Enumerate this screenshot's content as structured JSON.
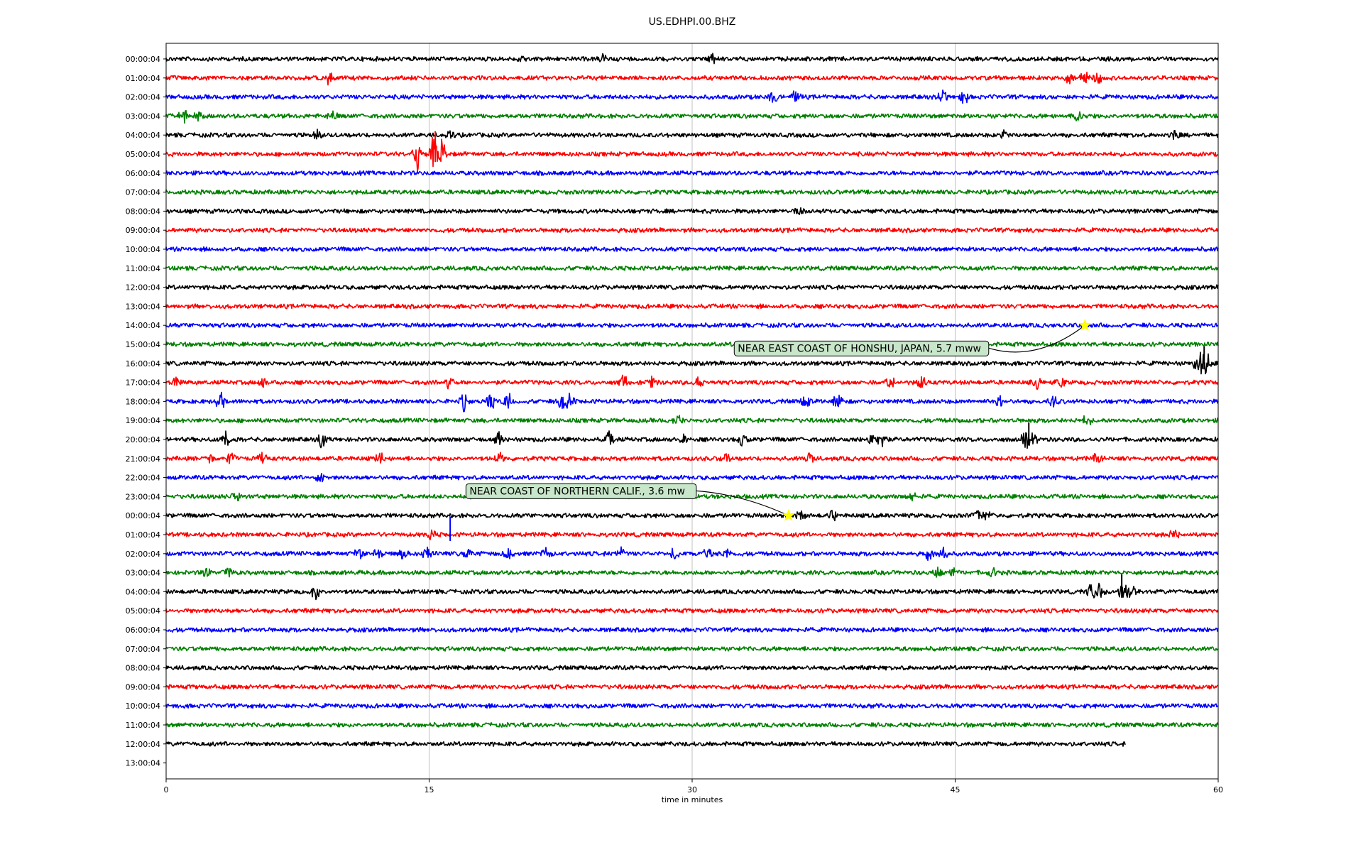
{
  "chart_data": {
    "type": "line",
    "title": "US.EDHPI.00.BHZ",
    "xlabel": "time in minutes",
    "ylabel": "",
    "xlim": [
      0,
      60
    ],
    "x_ticks": [
      0,
      15,
      30,
      45,
      60
    ],
    "x_tick_labels": [
      "0",
      "15",
      "30",
      "45",
      "60"
    ],
    "grid": "vertical lines at x ticks",
    "row_labels": [
      "00:00:04",
      "01:00:04",
      "02:00:04",
      "03:00:04",
      "04:00:04",
      "05:00:04",
      "06:00:04",
      "07:00:04",
      "08:00:04",
      "09:00:04",
      "10:00:04",
      "11:00:04",
      "12:00:04",
      "13:00:04",
      "14:00:04",
      "15:00:04",
      "16:00:04",
      "17:00:04",
      "18:00:04",
      "19:00:04",
      "20:00:04",
      "21:00:04",
      "22:00:04",
      "23:00:04",
      "00:00:04",
      "01:00:04",
      "02:00:04",
      "03:00:04",
      "04:00:04",
      "05:00:04",
      "06:00:04",
      "07:00:04",
      "08:00:04",
      "09:00:04",
      "10:00:04",
      "11:00:04",
      "12:00:04",
      "13:00:04"
    ],
    "trace_colors": [
      "#000000",
      "#ff0000",
      "#0000ff",
      "#008000"
    ],
    "trace_end_minutes": [
      60,
      60,
      60,
      60,
      60,
      60,
      60,
      60,
      60,
      60,
      60,
      60,
      60,
      60,
      60,
      60,
      60,
      60,
      60,
      60,
      60,
      60,
      60,
      60,
      60,
      60,
      60,
      60,
      60,
      60,
      60,
      60,
      60,
      60,
      60,
      60,
      54.7,
      0
    ],
    "events": [
      {
        "row": 0,
        "minutes": [
          20.3,
          24.9,
          31.2
        ],
        "amplitude": 0.25
      },
      {
        "row": 1,
        "minutes": [
          9.3,
          51.5,
          52.4,
          53.1
        ],
        "amplitude": 0.45
      },
      {
        "row": 2,
        "minutes": [
          34.6,
          35.9,
          44.3,
          45.5
        ],
        "amplitude": 0.45
      },
      {
        "row": 3,
        "minutes": [
          1.0,
          1.8,
          9.5,
          52.0
        ],
        "amplitude": 0.4
      },
      {
        "row": 4,
        "minutes": [
          8.6,
          16.2,
          47.8,
          57.5
        ],
        "amplitude": 0.3
      },
      {
        "row": 5,
        "minutes": [
          14.3,
          15.2,
          15.7
        ],
        "amplitude": 1.1
      },
      {
        "row": 8,
        "minutes": [
          36.1
        ],
        "amplitude": 0.2
      },
      {
        "row": 16,
        "minutes": [
          58.9,
          59.3
        ],
        "amplitude": 1.0
      },
      {
        "row": 17,
        "minutes": [
          0.6,
          5.5,
          16.1,
          26.1,
          27.7,
          30.4,
          41.3,
          43.1,
          49.6,
          51.0
        ],
        "amplitude": 0.45
      },
      {
        "row": 18,
        "minutes": [
          3.1,
          17.0,
          18.5,
          19.5,
          22.6,
          23.0,
          36.5,
          38.3,
          47.5,
          50.6
        ],
        "amplitude": 0.55
      },
      {
        "row": 19,
        "minutes": [
          29.2,
          52.5
        ],
        "amplitude": 0.35
      },
      {
        "row": 20,
        "minutes": [
          3.4,
          8.9,
          19.0,
          25.3,
          29.6,
          32.9,
          40.3,
          40.8,
          49.0,
          49.4
        ],
        "amplitude": 0.5
      },
      {
        "row": 21,
        "minutes": [
          2.4,
          3.7,
          5.5,
          12.2,
          19.0,
          31.9,
          36.7,
          53.1
        ],
        "amplitude": 0.35
      },
      {
        "row": 22,
        "minutes": [
          8.8
        ],
        "amplitude": 0.3
      },
      {
        "row": 23,
        "minutes": [
          4.0,
          42.6
        ],
        "amplitude": 0.3
      },
      {
        "row": 24,
        "minutes": [
          36.2,
          38.0,
          46.2,
          46.8
        ],
        "amplitude": 0.35
      },
      {
        "row": 25,
        "minutes": [
          15.1,
          57.5
        ],
        "amplitude": 0.35
      },
      {
        "row": 26,
        "minutes": [
          11.0,
          12.1,
          13.5,
          14.9,
          17.1,
          19.5,
          21.7,
          25.9,
          29.0,
          30.9,
          31.9,
          43.5,
          44.3
        ],
        "amplitude": 0.4
      },
      {
        "row": 27,
        "minutes": [
          2.3,
          3.6,
          44.0,
          44.9,
          47.1
        ],
        "amplitude": 0.3
      },
      {
        "row": 28,
        "minutes": [
          8.5,
          52.8,
          53.3,
          54.5,
          55.0
        ],
        "amplitude": 0.6
      }
    ],
    "spikes": [
      {
        "row": 5,
        "minute": 15.35,
        "height": 1.2,
        "color": "#ff0000"
      },
      {
        "row": 16,
        "minute": 59.2,
        "height": 0.9,
        "color": "#000000"
      },
      {
        "row": 20,
        "minute": 49.2,
        "height": 0.9,
        "color": "#000000"
      },
      {
        "row": 25,
        "minute": 16.2,
        "height": 0.95,
        "color": "#0000ff"
      },
      {
        "row": 28,
        "minute": 54.5,
        "height": 0.9,
        "color": "#000000"
      }
    ],
    "annotations": [
      {
        "text": "NEAR EAST COAST OF HONSHU, JAPAN, 5.7 mww",
        "row": 14,
        "minute": 52.4,
        "label_row": 15.2,
        "label_minute": 32.4
      },
      {
        "text": "NEAR COAST OF NORTHERN CALIF., 3.6 mw",
        "row": 24,
        "minute": 35.5,
        "label_row": 22.7,
        "label_minute": 17.1
      }
    ],
    "marker_color": "#ffff00",
    "annotation_box_color": "#c8e6c9"
  }
}
